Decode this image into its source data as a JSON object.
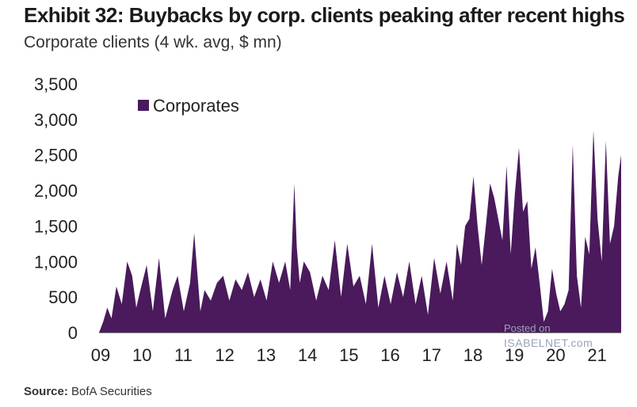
{
  "header": {
    "title": "Exhibit 32: Buybacks by corp. clients peaking after recent highs",
    "subtitle": "Corporate clients (4 wk. avg, $ mn)"
  },
  "footer": {
    "source_label": "Source:",
    "source_text": "BofA Securities"
  },
  "watermark": {
    "line1": "Posted on",
    "line2": "ISABELNET.com"
  },
  "colors": {
    "series": "#4a1a5c",
    "text": "#1a1a1a",
    "background": "#ffffff"
  },
  "chart_data": {
    "type": "area",
    "title": "Exhibit 32: Buybacks by corp. clients peaking after recent highs",
    "subtitle": "Corporate clients (4 wk. avg, $ mn)",
    "xlabel": "",
    "ylabel": "",
    "xlim": [
      2009.0,
      2021.62
    ],
    "ylim": [
      0,
      3500
    ],
    "yticks": [
      0,
      500,
      1000,
      1500,
      2000,
      2500,
      3000,
      3500
    ],
    "ytick_labels": [
      "0",
      "500",
      "1,000",
      "1,500",
      "2,000",
      "2,500",
      "3,000",
      "3,500"
    ],
    "xticks": [
      2009,
      2010,
      2011,
      2012,
      2013,
      2014,
      2015,
      2016,
      2017,
      2018,
      2019,
      2020,
      2021
    ],
    "xtick_labels": [
      "09",
      "10",
      "11",
      "12",
      "13",
      "14",
      "15",
      "16",
      "17",
      "18",
      "19",
      "20",
      "21"
    ],
    "grid": false,
    "legend_position": "top-left",
    "series": [
      {
        "name": "Corporates",
        "x": [
          2009.0,
          2009.1,
          2009.2,
          2009.3,
          2009.42,
          2009.55,
          2009.68,
          2009.8,
          2009.9,
          2010.0,
          2010.15,
          2010.3,
          2010.45,
          2010.6,
          2010.78,
          2010.9,
          2011.05,
          2011.2,
          2011.3,
          2011.45,
          2011.55,
          2011.7,
          2011.85,
          2012.0,
          2012.15,
          2012.3,
          2012.45,
          2012.6,
          2012.75,
          2012.9,
          2013.05,
          2013.2,
          2013.35,
          2013.5,
          2013.62,
          2013.72,
          2013.78,
          2013.85,
          2013.95,
          2014.1,
          2014.25,
          2014.4,
          2014.55,
          2014.7,
          2014.85,
          2015.0,
          2015.15,
          2015.3,
          2015.45,
          2015.6,
          2015.75,
          2015.9,
          2016.05,
          2016.2,
          2016.35,
          2016.5,
          2016.65,
          2016.8,
          2016.95,
          2017.1,
          2017.25,
          2017.4,
          2017.55,
          2017.65,
          2017.75,
          2017.85,
          2017.95,
          2018.05,
          2018.15,
          2018.25,
          2018.35,
          2018.45,
          2018.55,
          2018.65,
          2018.75,
          2018.85,
          2018.95,
          2019.05,
          2019.15,
          2019.25,
          2019.35,
          2019.45,
          2019.55,
          2019.65,
          2019.75,
          2019.85,
          2019.95,
          2020.05,
          2020.15,
          2020.25,
          2020.35,
          2020.45,
          2020.55,
          2020.65,
          2020.75,
          2020.85,
          2020.95,
          2021.05,
          2021.15,
          2021.25,
          2021.35,
          2021.45,
          2021.55,
          2021.62
        ],
        "values": [
          0,
          150,
          350,
          200,
          650,
          400,
          1000,
          800,
          350,
          600,
          950,
          300,
          1050,
          200,
          600,
          800,
          300,
          700,
          1400,
          300,
          600,
          450,
          700,
          800,
          450,
          750,
          600,
          850,
          500,
          750,
          450,
          1000,
          700,
          1000,
          600,
          2100,
          1200,
          700,
          1000,
          850,
          450,
          800,
          600,
          1300,
          500,
          1250,
          650,
          800,
          400,
          1250,
          350,
          800,
          400,
          850,
          500,
          1000,
          400,
          800,
          250,
          1050,
          550,
          1000,
          450,
          1250,
          950,
          1500,
          1600,
          2200,
          1500,
          950,
          1500,
          2100,
          1900,
          1600,
          1300,
          2350,
          1100,
          1950,
          2600,
          1700,
          1850,
          900,
          1200,
          700,
          150,
          300,
          900,
          550,
          300,
          400,
          600,
          2650,
          800,
          350,
          1350,
          1100,
          2850,
          1600,
          1000,
          2700,
          1250,
          1500,
          2200,
          2500
        ]
      }
    ]
  }
}
